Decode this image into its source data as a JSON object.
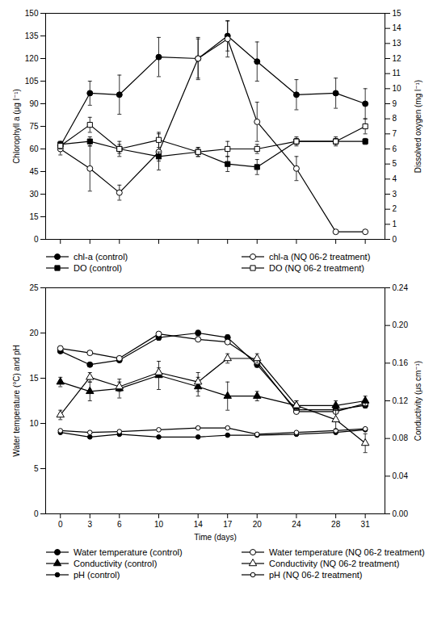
{
  "chart_data": [
    {
      "type": "line",
      "x": [
        0,
        3,
        6,
        10,
        14,
        17,
        20,
        24,
        28,
        31
      ],
      "xlim": [
        -1.5,
        33
      ],
      "xticks": [
        0,
        3,
        6,
        10,
        14,
        17,
        20,
        24,
        28,
        31
      ],
      "tick_labels": "y",
      "ylabel": "Chlorophyll a (μg l⁻¹)",
      "ylim": [
        0,
        150
      ],
      "yticks": [
        0,
        15,
        30,
        45,
        60,
        75,
        90,
        105,
        120,
        135,
        150
      ],
      "y2label": "Dissolved oxygen (mg l⁻¹)",
      "y2lim": [
        0,
        15
      ],
      "y2ticks": [
        0,
        1,
        2,
        3,
        4,
        5,
        6,
        7,
        8,
        9,
        10,
        11,
        12,
        13,
        14,
        15
      ],
      "grid": false,
      "legend": "lower left",
      "series": [
        {
          "name": "chl-a (control)",
          "color": "black",
          "marker": "circle",
          "line_style": "solid",
          "values": [
            62,
            97,
            96,
            121,
            120,
            135,
            118,
            96,
            97,
            90
          ],
          "errors": [
            3,
            8,
            13,
            13,
            14,
            10,
            13,
            10,
            10,
            10
          ]
        },
        {
          "name": "chl-a (NQ 06-2 treatment)",
          "color": "black",
          "marker": "open-circle",
          "line_style": "solid",
          "values": [
            60,
            47,
            31,
            58,
            120,
            133,
            78,
            47,
            5,
            5
          ],
          "errors": [
            4,
            15,
            5,
            12,
            13,
            12,
            13,
            8,
            1,
            1
          ]
        },
        {
          "name": "DO (control)",
          "color": "black",
          "marker": "square",
          "line_style": "solid",
          "axis": "y2",
          "values": [
            6.3,
            6.5,
            6.0,
            5.5,
            5.8,
            5.0,
            4.8,
            6.5,
            6.5,
            6.5
          ],
          "errors": [
            0.2,
            0.3,
            0.5,
            0.3,
            0.3,
            0.5,
            0.5,
            0.2,
            0.2,
            0.2
          ]
        },
        {
          "name": "DO (NQ 06-2 treatment)",
          "color": "black",
          "marker": "open-square",
          "line_style": "solid",
          "axis": "y2",
          "values": [
            6.2,
            7.6,
            6.0,
            6.6,
            5.8,
            6.0,
            6.0,
            6.5,
            6.5,
            7.5
          ],
          "errors": [
            0.2,
            0.5,
            0.3,
            0.5,
            0.3,
            0.5,
            0.3,
            0.3,
            0.3,
            0.5
          ]
        }
      ]
    },
    {
      "type": "line",
      "x": [
        0,
        3,
        6,
        10,
        14,
        17,
        20,
        24,
        28,
        31
      ],
      "xlabel": "Time (days)",
      "xlim": [
        -1.5,
        33
      ],
      "xticks": [
        0,
        3,
        6,
        10,
        14,
        17,
        20,
        24,
        28,
        31
      ],
      "ylabel": "Water temperature (°C) and pH",
      "ylim": [
        0,
        25
      ],
      "yticks": [
        0,
        5,
        10,
        15,
        20,
        25
      ],
      "y2label": "Conductivity (μs cm⁻¹)",
      "y2lim": [
        0,
        0.24
      ],
      "y2ticks": [
        {
          "value": 0,
          "label": "0.00"
        },
        0.04,
        0.08,
        0.12,
        0.16,
        {
          "value": 0.2,
          "label": "0.20"
        },
        0.24
      ],
      "grid": false,
      "legend": "lower left",
      "series": [
        {
          "name": "Water temperature (control)",
          "color": "black",
          "marker": "circle",
          "line_style": "solid",
          "values": [
            18.0,
            16.5,
            17.0,
            19.5,
            20.0,
            19.5,
            16.5,
            11.5,
            11.5,
            12.0
          ],
          "errors": [
            0.1,
            0.2,
            0.2,
            0.3,
            0.3,
            0.3,
            0.3,
            0.2,
            0.2,
            0.3
          ]
        },
        {
          "name": "Water temperature (NQ 06-2 treatment)",
          "color": "black",
          "marker": "open-circle",
          "line_style": "solid",
          "values": [
            18.3,
            17.8,
            17.2,
            19.9,
            19.3,
            19.0,
            16.8,
            11.3,
            11.3,
            12.2
          ],
          "errors": [
            0.1,
            0.2,
            0.2,
            0.2,
            0.2,
            0.2,
            0.2,
            0.2,
            0.2,
            0.2
          ]
        },
        {
          "name": "Conductivity (control)",
          "color": "black",
          "marker": "triangle",
          "line_style": "solid",
          "axis": "y2",
          "values": [
            0.14,
            0.13,
            0.133,
            0.147,
            0.135,
            0.125,
            0.125,
            0.115,
            0.115,
            0.12
          ],
          "errors": [
            0.005,
            0.01,
            0.01,
            0.015,
            0.01,
            0.015,
            0.005,
            0.005,
            0.005,
            0.005
          ]
        },
        {
          "name": "Conductivity (NQ 06-2 treatment)",
          "color": "black",
          "marker": "open-triangle",
          "line_style": "solid",
          "axis": "y2",
          "values": [
            0.105,
            0.145,
            0.135,
            0.15,
            0.14,
            0.165,
            0.165,
            0.115,
            0.1,
            0.075
          ],
          "errors": [
            0.005,
            0.005,
            0.005,
            0.005,
            0.01,
            0.005,
            0.005,
            0.005,
            0.01,
            0.01
          ]
        },
        {
          "name": "pH (control)",
          "color": "black",
          "marker": "small-circle",
          "line_style": "solid",
          "values": [
            9.0,
            8.5,
            8.8,
            8.5,
            8.5,
            8.7,
            8.7,
            8.8,
            9.0,
            9.3
          ],
          "errors": [
            0.1,
            0.1,
            0.1,
            0.1,
            0.1,
            0.1,
            0.1,
            0.1,
            0.1,
            0.1
          ]
        },
        {
          "name": "pH (NQ 06-2 treatment)",
          "color": "black",
          "marker": "small-open-circle",
          "line_style": "solid",
          "values": [
            9.2,
            9.0,
            9.1,
            9.3,
            9.5,
            9.5,
            8.8,
            9.0,
            9.2,
            9.4
          ],
          "errors": [
            0.1,
            0.1,
            0.1,
            0.1,
            0.1,
            0.1,
            0.1,
            0.1,
            0.1,
            0.1
          ]
        }
      ]
    }
  ]
}
